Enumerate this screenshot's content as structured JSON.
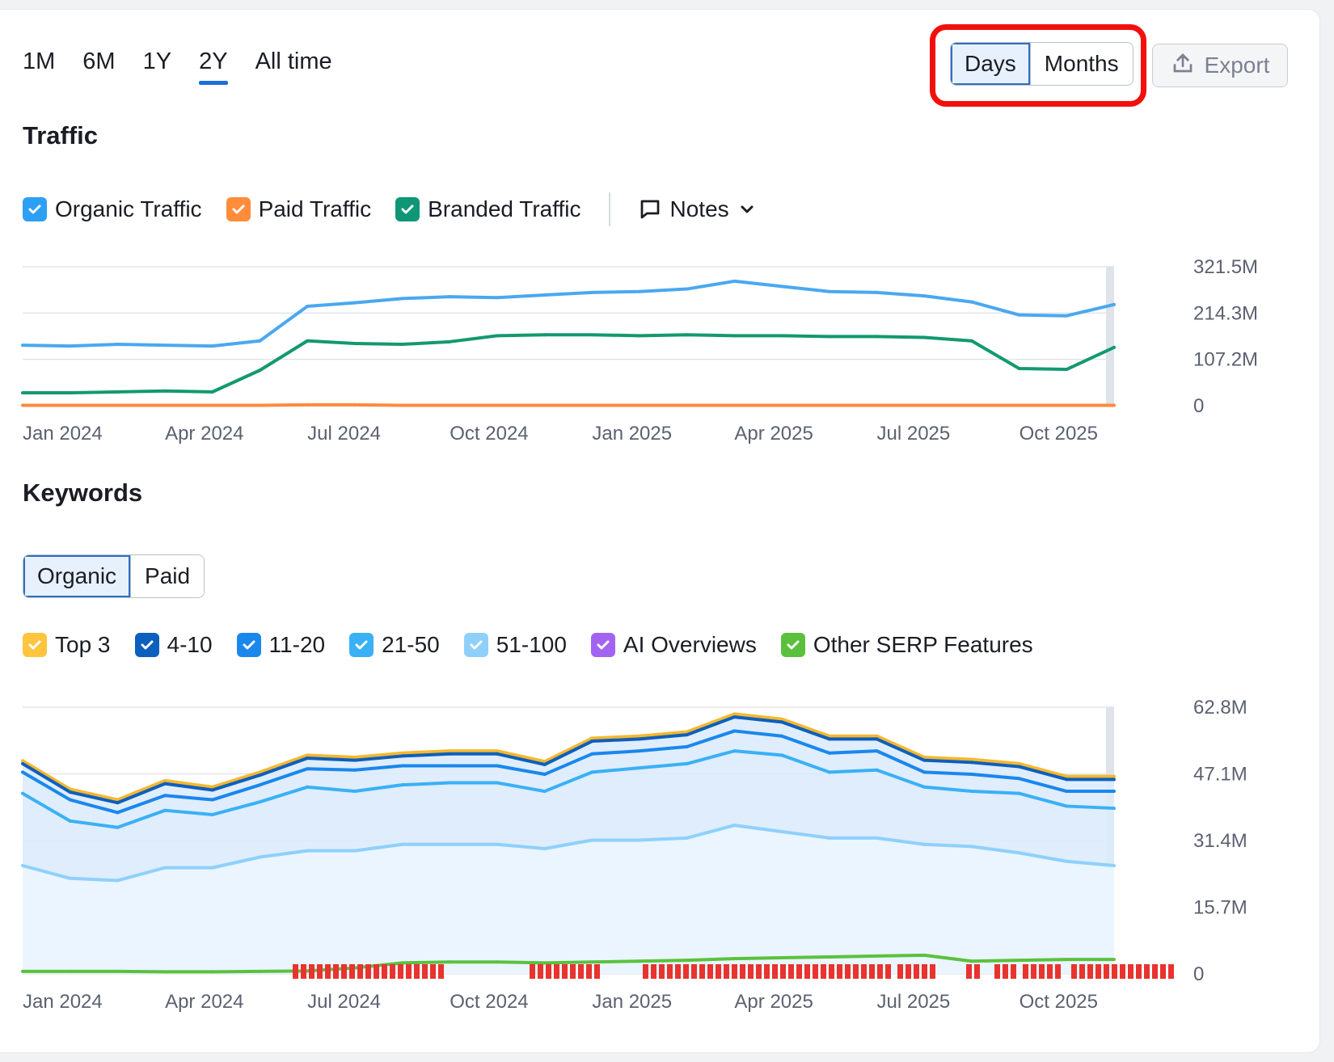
{
  "periods": [
    "1M",
    "6M",
    "1Y",
    "2Y",
    "All time"
  ],
  "active_period": "2Y",
  "view_toggle": {
    "days": "Days",
    "months": "Months",
    "selected": "Days"
  },
  "export_label": "Export",
  "traffic": {
    "title": "Traffic",
    "legend": [
      {
        "label": "Organic Traffic",
        "color": "#2d9ff4"
      },
      {
        "label": "Paid Traffic",
        "color": "#ff8c3a"
      },
      {
        "label": "Branded Traffic",
        "color": "#0f9675"
      }
    ],
    "notes_label": "Notes"
  },
  "keywords": {
    "title": "Keywords",
    "tabs": [
      "Organic",
      "Paid"
    ],
    "selected_tab": "Organic",
    "legend": [
      {
        "label": "Top 3",
        "color": "#ffc53d"
      },
      {
        "label": "4-10",
        "color": "#0d5fbd"
      },
      {
        "label": "11-20",
        "color": "#1a87ec"
      },
      {
        "label": "21-50",
        "color": "#3ab0f5"
      },
      {
        "label": "51-100",
        "color": "#8fd0fb"
      },
      {
        "label": "AI Overviews",
        "color": "#a264f0"
      },
      {
        "label": "Other SERP Features",
        "color": "#5bc13d"
      }
    ]
  },
  "chart_data": [
    {
      "type": "line",
      "x_ticks": [
        "Jan 2024",
        "Apr 2024",
        "Jul 2024",
        "Oct 2024",
        "Jan 2025",
        "Apr 2025",
        "Jul 2025",
        "Oct 2025"
      ],
      "y_ticks": [
        "321.5M",
        "214.3M",
        "107.2M",
        "0"
      ],
      "ylim": [
        0,
        321.5
      ],
      "x": [
        "2024-01",
        "2024-02",
        "2024-03",
        "2024-04",
        "2024-05",
        "2024-06",
        "2024-07",
        "2024-08",
        "2024-09",
        "2024-10",
        "2024-11",
        "2024-12",
        "2025-01",
        "2025-02",
        "2025-03",
        "2025-04",
        "2025-05",
        "2025-06",
        "2025-07",
        "2025-08",
        "2025-09",
        "2025-10",
        "2025-11",
        "2025-12"
      ],
      "series": [
        {
          "name": "Organic Traffic",
          "color": "#4aa8f0",
          "values": [
            140,
            138,
            142,
            140,
            138,
            150,
            230,
            238,
            248,
            252,
            250,
            256,
            262,
            264,
            270,
            288,
            276,
            264,
            262,
            254,
            240,
            210,
            208,
            234
          ]
        },
        {
          "name": "Branded Traffic",
          "color": "#13996f",
          "values": [
            30,
            30,
            32,
            34,
            32,
            82,
            150,
            144,
            142,
            148,
            162,
            164,
            164,
            162,
            164,
            162,
            162,
            160,
            160,
            158,
            150,
            86,
            84,
            135
          ]
        },
        {
          "name": "Paid Traffic",
          "color": "#ff8a3d",
          "values": [
            1,
            1,
            1,
            1,
            1,
            1,
            2,
            2,
            1,
            1,
            1,
            1,
            1,
            1,
            1,
            1,
            1,
            1,
            1,
            1,
            1,
            1,
            1,
            1
          ]
        }
      ]
    },
    {
      "type": "area",
      "x_ticks": [
        "Jan 2024",
        "Apr 2024",
        "Jul 2024",
        "Oct 2024",
        "Jan 2025",
        "Apr 2025",
        "Jul 2025",
        "Oct 2025"
      ],
      "y_ticks": [
        "62.8M",
        "47.1M",
        "31.4M",
        "15.7M",
        "0"
      ],
      "ylim": [
        0,
        62.8
      ],
      "x": [
        "2024-01",
        "2024-02",
        "2024-03",
        "2024-04",
        "2024-05",
        "2024-06",
        "2024-07",
        "2024-08",
        "2024-09",
        "2024-10",
        "2024-11",
        "2024-12",
        "2025-01",
        "2025-02",
        "2025-03",
        "2025-04",
        "2025-05",
        "2025-06",
        "2025-07",
        "2025-08",
        "2025-09",
        "2025-10",
        "2025-11",
        "2025-12"
      ],
      "series": [
        {
          "name": "Top 3",
          "color": "#f5b82e",
          "values": [
            50.2,
            43.5,
            41.0,
            45.5,
            44.0,
            47.5,
            51.5,
            51.0,
            52.0,
            52.5,
            52.5,
            50.0,
            55.5,
            56.0,
            57.0,
            61.2,
            60.0,
            56.0,
            56.0,
            51.0,
            50.5,
            49.5,
            46.5,
            46.5
          ]
        },
        {
          "name": "4-10",
          "color": "#0d5fbd",
          "values": [
            49.5,
            42.8,
            40.3,
            44.8,
            43.3,
            46.8,
            50.8,
            50.3,
            51.3,
            51.8,
            51.8,
            49.3,
            54.8,
            55.3,
            56.3,
            60.5,
            59.3,
            55.3,
            55.3,
            50.3,
            49.8,
            48.8,
            45.8,
            45.8
          ]
        },
        {
          "name": "11-20",
          "color": "#1a87ec",
          "values": [
            47.5,
            41.0,
            38.0,
            42.0,
            41.0,
            44.5,
            48.3,
            48.0,
            49.0,
            49.0,
            49.0,
            47.0,
            51.8,
            52.5,
            53.5,
            57.2,
            56.0,
            52.0,
            52.5,
            47.5,
            47.0,
            46.0,
            43.0,
            43.0
          ]
        },
        {
          "name": "21-50",
          "color": "#3ab0f5",
          "values": [
            42.5,
            36.0,
            34.5,
            38.5,
            37.5,
            40.5,
            44.0,
            43.0,
            44.5,
            45.0,
            45.0,
            43.0,
            47.5,
            48.5,
            49.5,
            52.5,
            51.5,
            47.5,
            48.0,
            44.0,
            43.0,
            42.5,
            39.5,
            39.0
          ]
        },
        {
          "name": "51-100",
          "color": "#8fd0fb",
          "values": [
            25.5,
            22.5,
            22.0,
            25.0,
            25.0,
            27.5,
            29.0,
            29.0,
            30.5,
            30.5,
            30.5,
            29.5,
            31.5,
            31.5,
            32.0,
            35.0,
            33.5,
            32.0,
            32.0,
            30.5,
            30.0,
            28.5,
            26.5,
            25.5
          ]
        },
        {
          "name": "Other SERP Features",
          "color": "#5bc13d",
          "values": [
            0.6,
            0.6,
            0.6,
            0.5,
            0.5,
            0.6,
            0.7,
            1.4,
            2.6,
            2.8,
            2.8,
            2.6,
            2.8,
            3.0,
            3.2,
            3.6,
            3.8,
            4.0,
            4.2,
            4.4,
            3.0,
            3.2,
            3.4,
            3.4
          ]
        }
      ]
    }
  ]
}
